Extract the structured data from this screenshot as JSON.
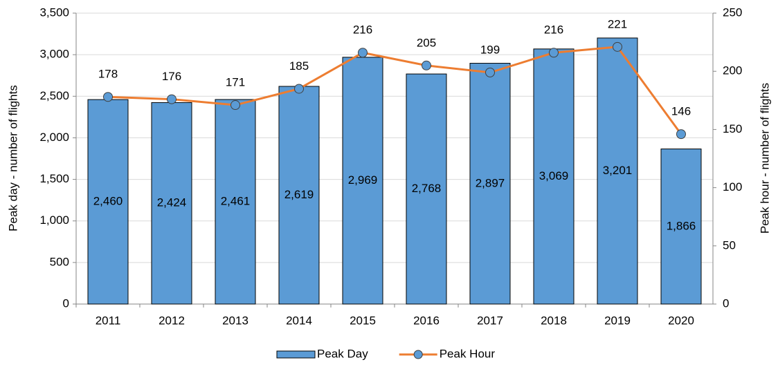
{
  "chart_data": {
    "type": "bar",
    "categories": [
      "2011",
      "2012",
      "2013",
      "2014",
      "2015",
      "2016",
      "2017",
      "2018",
      "2019",
      "2020"
    ],
    "series": [
      {
        "name": "Peak Day",
        "type": "bar",
        "color": "#5b9bd5",
        "axis": "y",
        "values": [
          2460,
          2424,
          2461,
          2619,
          2969,
          2768,
          2897,
          3069,
          3201,
          1866
        ],
        "value_labels": [
          "2,460",
          "2,424",
          "2,461",
          "2,619",
          "2,969",
          "2,768",
          "2,897",
          "3,069",
          "3,201",
          "1,866"
        ]
      },
      {
        "name": "Peak Hour",
        "type": "line",
        "color": "#ed7d31",
        "marker_color": "#5b9bd5",
        "axis": "y2",
        "values": [
          178,
          176,
          171,
          185,
          216,
          205,
          199,
          216,
          221,
          146
        ]
      }
    ],
    "ylabel": "Peak day - number of flights",
    "y2label": "Peak hour - number of flights",
    "ylim": [
      0,
      3500
    ],
    "yticks": [
      0,
      500,
      {
        "value": 1000,
        "label": "1,000"
      },
      {
        "value": 1500,
        "label": "1,500"
      },
      {
        "value": 2000,
        "label": "2,000"
      },
      {
        "value": 2500,
        "label": "2,500"
      },
      {
        "value": 3000,
        "label": "3,000"
      },
      {
        "value": 3500,
        "label": "3,500"
      }
    ],
    "y2lim": [
      0,
      250
    ],
    "y2ticks": [
      0,
      50,
      100,
      150,
      200,
      250
    ],
    "grid": true,
    "legend": "bottom"
  }
}
